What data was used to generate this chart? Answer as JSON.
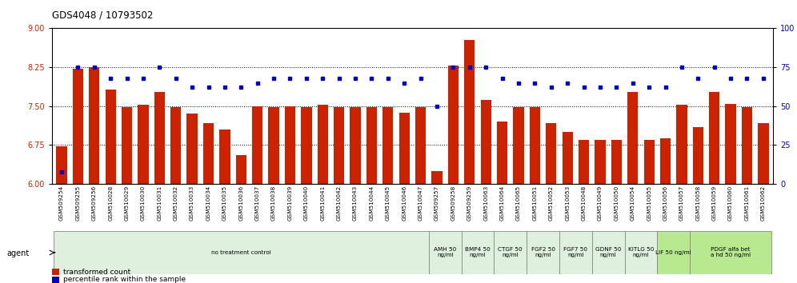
{
  "title": "GDS4048 / 10793502",
  "bar_color": "#CC2200",
  "dot_color": "#0000CC",
  "categories": [
    "GSM509254",
    "GSM509255",
    "GSM509256",
    "GSM510028",
    "GSM510029",
    "GSM510030",
    "GSM510031",
    "GSM510032",
    "GSM510033",
    "GSM510034",
    "GSM510035",
    "GSM510036",
    "GSM510037",
    "GSM510038",
    "GSM510039",
    "GSM510040",
    "GSM510041",
    "GSM510042",
    "GSM510043",
    "GSM510044",
    "GSM510045",
    "GSM510046",
    "GSM510047",
    "GSM509257",
    "GSM509258",
    "GSM509259",
    "GSM510063",
    "GSM510064",
    "GSM510065",
    "GSM510051",
    "GSM510052",
    "GSM510053",
    "GSM510048",
    "GSM510049",
    "GSM510050",
    "GSM510054",
    "GSM510055",
    "GSM510056",
    "GSM510057",
    "GSM510058",
    "GSM510059",
    "GSM510060",
    "GSM510061",
    "GSM510062"
  ],
  "bar_values": [
    6.72,
    8.22,
    8.25,
    7.82,
    7.48,
    7.52,
    7.78,
    7.48,
    7.35,
    7.18,
    7.05,
    6.55,
    7.5,
    7.48,
    7.5,
    7.48,
    7.52,
    7.48,
    7.48,
    7.48,
    7.48,
    7.38,
    7.48,
    6.25,
    8.28,
    8.78,
    7.62,
    7.2,
    7.48,
    7.48,
    7.18,
    7.0,
    6.85,
    6.85,
    6.85,
    7.78,
    6.85,
    6.88,
    7.52,
    7.1,
    7.78,
    7.55,
    7.48,
    7.18
  ],
  "dot_values": [
    7.6,
    75,
    75,
    68,
    68,
    68,
    75,
    68,
    62,
    62,
    62,
    62,
    65,
    68,
    68,
    68,
    68,
    68,
    68,
    68,
    68,
    65,
    68,
    50,
    75,
    75,
    75,
    68,
    65,
    65,
    62,
    65,
    62,
    62,
    62,
    65,
    62,
    62,
    75,
    68,
    75,
    68,
    68,
    68
  ],
  "ylim_left": [
    6.0,
    9.0
  ],
  "ylim_right": [
    0,
    100
  ],
  "yticks_left": [
    6.0,
    6.75,
    7.5,
    8.25,
    9.0
  ],
  "yticks_right": [
    0,
    25,
    50,
    75,
    100
  ],
  "hlines": [
    6.75,
    7.5,
    8.25
  ],
  "agent_groups": [
    {
      "label": "no treatment control",
      "start": 0,
      "end": 23,
      "color": "#dff0df"
    },
    {
      "label": "AMH 50\nng/ml",
      "start": 23,
      "end": 25,
      "color": "#dff0df"
    },
    {
      "label": "BMP4 50\nng/ml",
      "start": 25,
      "end": 27,
      "color": "#dff0df"
    },
    {
      "label": "CTGF 50\nng/ml",
      "start": 27,
      "end": 29,
      "color": "#dff0df"
    },
    {
      "label": "FGF2 50\nng/ml",
      "start": 29,
      "end": 31,
      "color": "#dff0df"
    },
    {
      "label": "FGF7 50\nng/ml",
      "start": 31,
      "end": 33,
      "color": "#dff0df"
    },
    {
      "label": "GDNF 50\nng/ml",
      "start": 33,
      "end": 35,
      "color": "#dff0df"
    },
    {
      "label": "KITLG 50\nng/ml",
      "start": 35,
      "end": 37,
      "color": "#dff0df"
    },
    {
      "label": "LIF 50 ng/ml",
      "start": 37,
      "end": 39,
      "color": "#b8e890"
    },
    {
      "label": "PDGF alfa bet\na hd 50 ng/ml",
      "start": 39,
      "end": 44,
      "color": "#b8e890"
    }
  ],
  "legend_bar_label": "transformed count",
  "legend_dot_label": "percentile rank within the sample",
  "agent_label": "agent"
}
